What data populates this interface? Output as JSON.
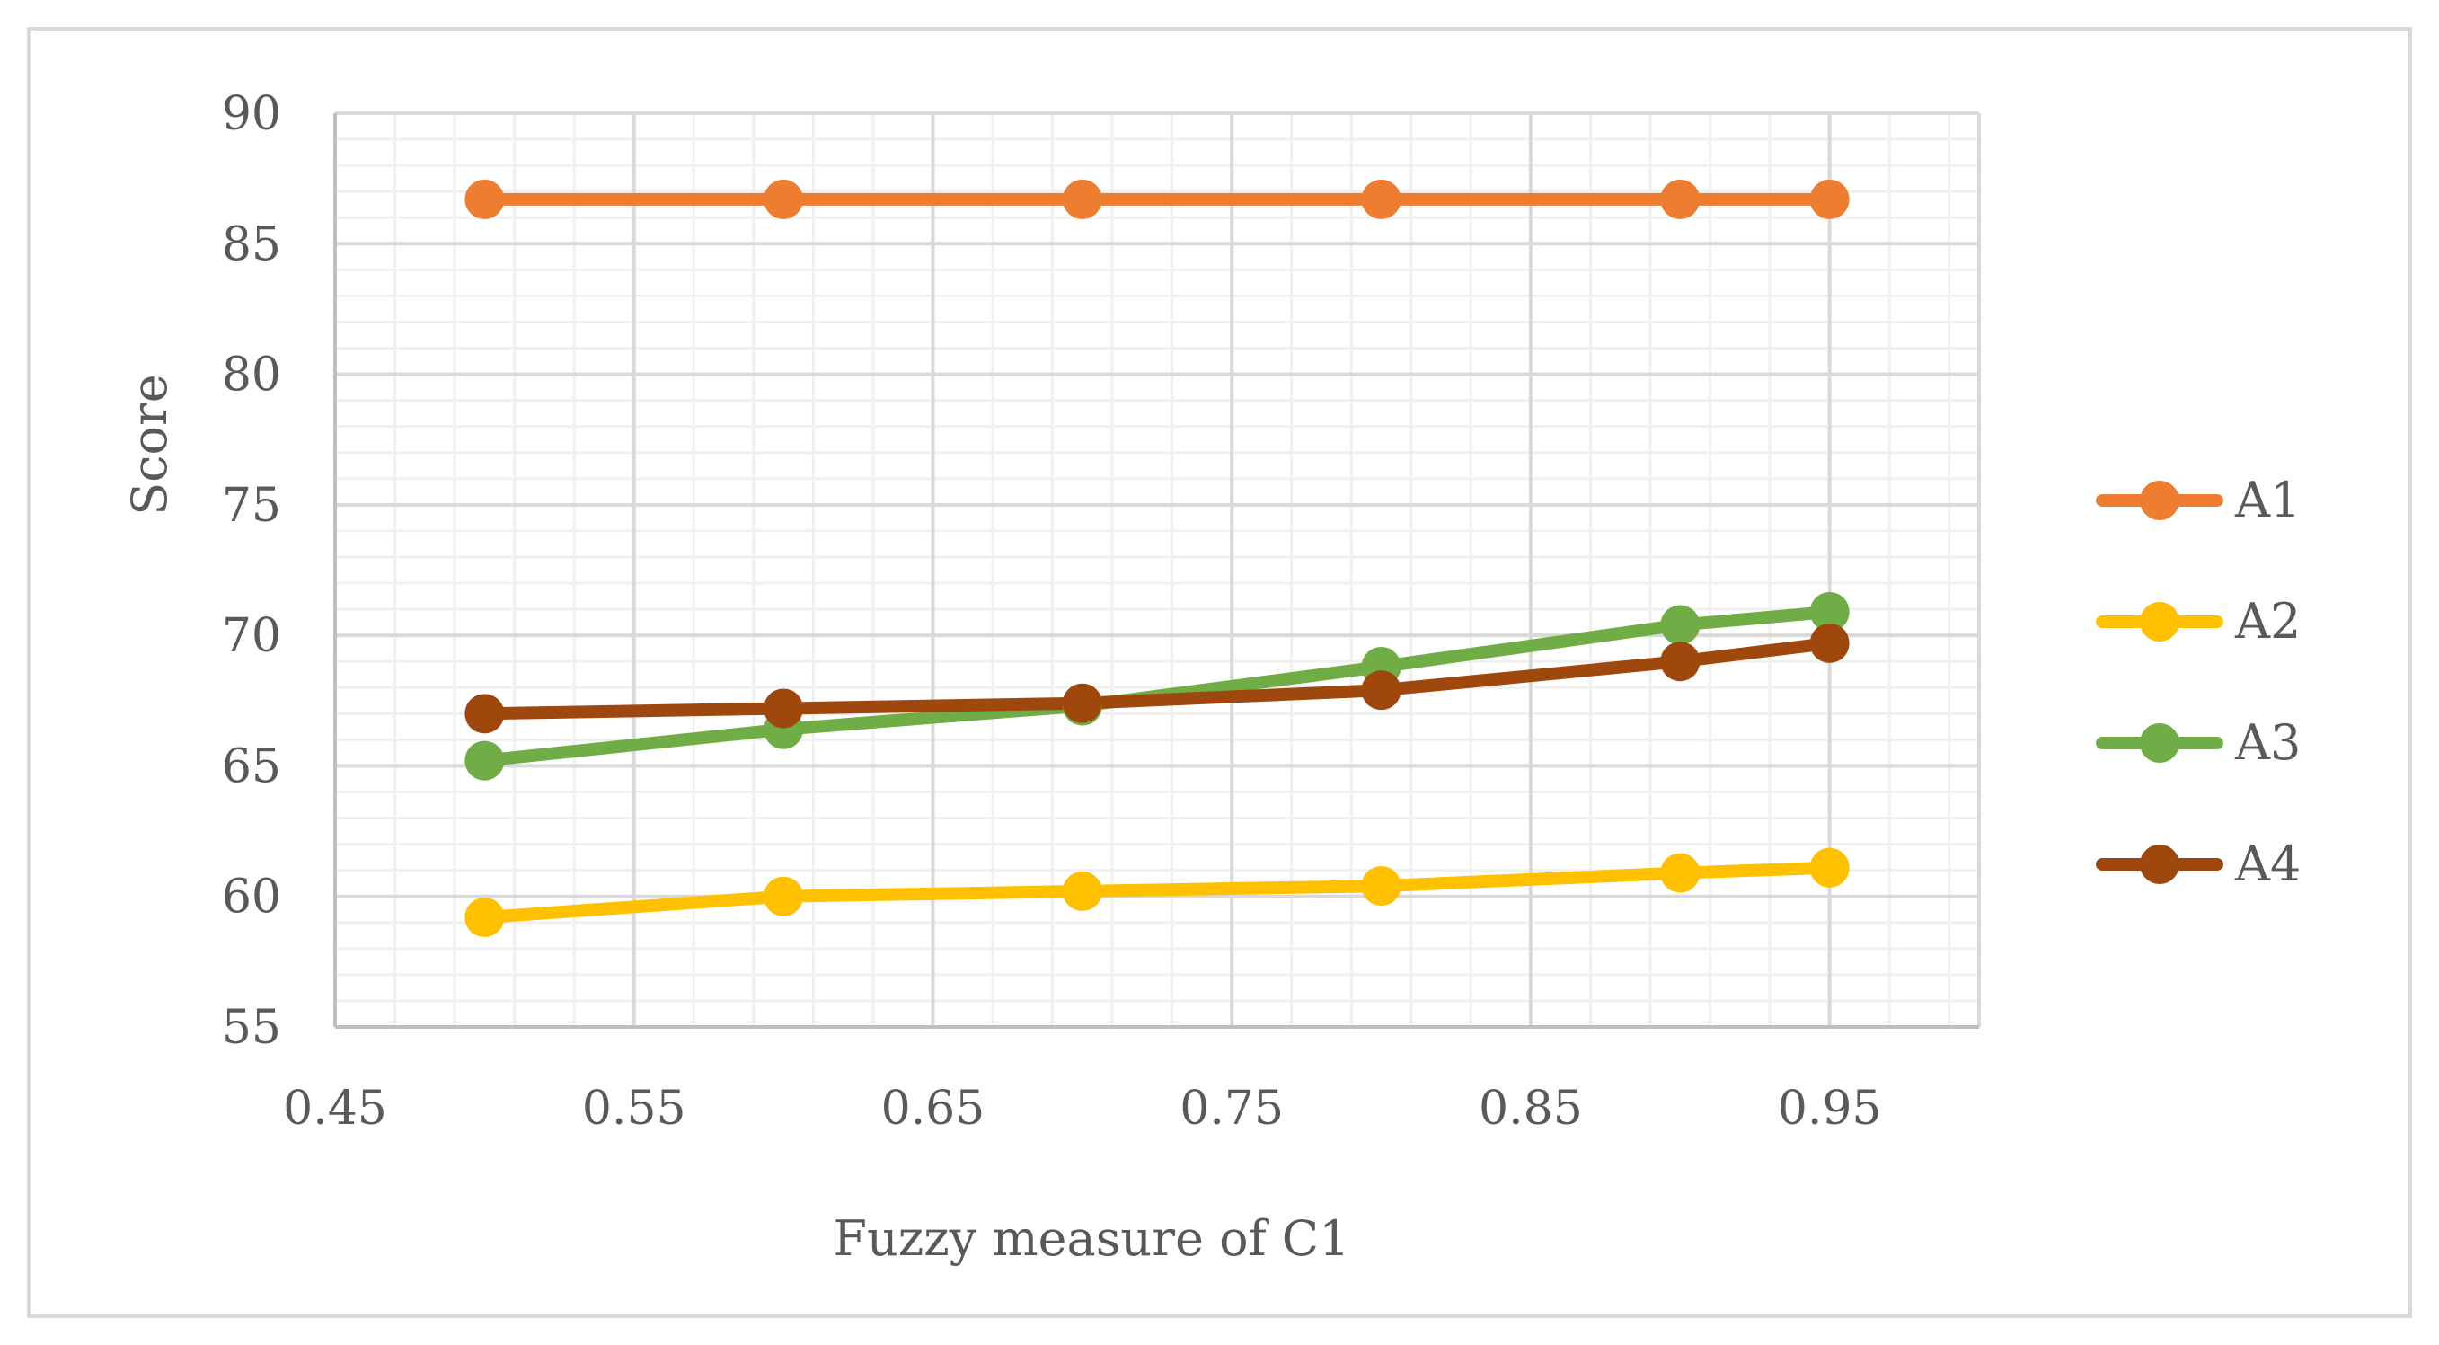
{
  "chart_data": {
    "type": "line",
    "title": "",
    "xlabel": "Fuzzy measure of C1",
    "ylabel": "Score",
    "xlim": [
      0.45,
      1.0
    ],
    "ylim": [
      55,
      90
    ],
    "x_major_ticks": [
      0.45,
      0.55,
      0.65,
      0.75,
      0.85,
      0.95
    ],
    "x_tick_labels": [
      "0.45",
      "0.55",
      "0.65",
      "0.75",
      "0.85",
      "0.95"
    ],
    "x_minor_step": 0.02,
    "y_major_ticks": [
      55,
      60,
      65,
      70,
      75,
      80,
      85,
      90
    ],
    "y_tick_labels": [
      "55",
      "60",
      "65",
      "70",
      "75",
      "80",
      "85",
      "90"
    ],
    "y_minor_step": 1,
    "grid": true,
    "legend_position": "right",
    "x": [
      0.5,
      0.6,
      0.7,
      0.8,
      0.9,
      0.95
    ],
    "series": [
      {
        "name": "A1",
        "color": "#ED7D31",
        "values": [
          86.7,
          86.7,
          86.7,
          86.7,
          86.7,
          86.7
        ]
      },
      {
        "name": "A2",
        "color": "#FFC000",
        "values": [
          59.2,
          60.0,
          60.2,
          60.4,
          60.9,
          61.1
        ]
      },
      {
        "name": "A3",
        "color": "#70AD47",
        "values": [
          65.2,
          66.4,
          67.3,
          68.8,
          70.4,
          70.9
        ]
      },
      {
        "name": "A4",
        "color": "#9E480E",
        "values": [
          67.0,
          67.2,
          67.4,
          67.9,
          69.0,
          69.7
        ]
      }
    ]
  }
}
